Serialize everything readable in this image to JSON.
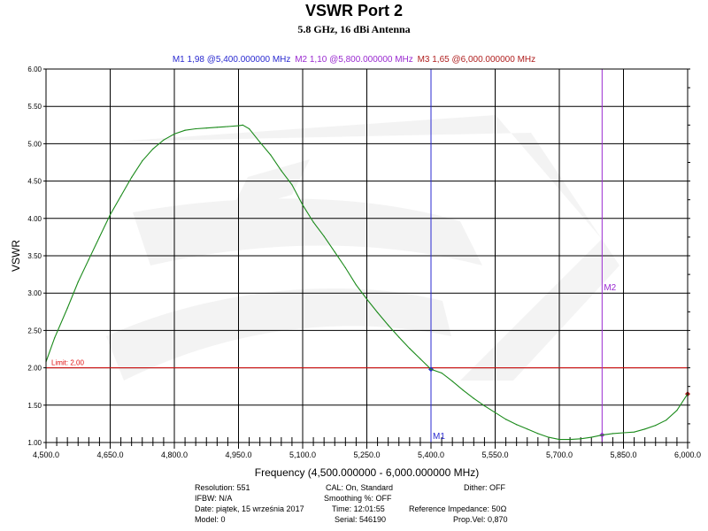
{
  "header": {
    "title": "VSWR Port 2",
    "subtitle": "5.8 GHz, 16 dBi Antenna"
  },
  "marker_readouts": [
    {
      "text": "M1  1,98 @5,400.000000 MHz",
      "color": "#2a2ad0"
    },
    {
      "text": "M2  1,10 @5,800.000000 MHz",
      "color": "#9a2ad0"
    },
    {
      "text": "M3  1,65 @6,000.000000 MHz",
      "color": "#b02020"
    }
  ],
  "chart_data": {
    "type": "line",
    "title": "VSWR Port 2",
    "subtitle": "5.8 GHz, 16 dBi Antenna",
    "xlabel": "Frequency (4,500.000000 - 6,000.000000 MHz)",
    "ylabel": "VSWR",
    "xlim": [
      4500,
      6000
    ],
    "ylim": [
      1.0,
      6.0
    ],
    "grid": true,
    "x_ticks": [
      4500,
      4650,
      4800,
      4950,
      5100,
      5250,
      5400,
      5550,
      5700,
      5850,
      6000
    ],
    "x_tick_labels": [
      "4,500.0",
      "4,650.0",
      "4,800.0",
      "4,950.0",
      "5,100.0",
      "5,250.0",
      "5,400.0",
      "5,550.0",
      "5,700.0",
      "5,850.0",
      "6,000.0"
    ],
    "y_ticks": [
      1.0,
      1.5,
      2.0,
      2.5,
      3.0,
      3.5,
      4.0,
      4.5,
      5.0,
      5.5,
      6.0
    ],
    "y_tick_labels": [
      "1.00",
      "1.50",
      "2.00",
      "2.50",
      "3.00",
      "3.50",
      "4.00",
      "4.50",
      "5.00",
      "5.50",
      "6.00"
    ],
    "series": [
      {
        "color": "#1a8a1a",
        "x": [
          4500,
          4520,
          4550,
          4575,
          4600,
          4625,
          4650,
          4675,
          4700,
          4725,
          4750,
          4775,
          4800,
          4825,
          4850,
          4875,
          4900,
          4925,
          4950,
          4960,
          4975,
          5000,
          5025,
          5050,
          5075,
          5100,
          5125,
          5150,
          5175,
          5200,
          5225,
          5250,
          5275,
          5300,
          5325,
          5350,
          5375,
          5400,
          5425,
          5450,
          5475,
          5500,
          5525,
          5550,
          5575,
          5600,
          5625,
          5650,
          5675,
          5700,
          5725,
          5750,
          5775,
          5800,
          5825,
          5850,
          5875,
          5900,
          5925,
          5950,
          5975,
          6000
        ],
        "y": [
          2.08,
          2.4,
          2.8,
          3.15,
          3.45,
          3.75,
          4.05,
          4.3,
          4.55,
          4.77,
          4.93,
          5.05,
          5.13,
          5.18,
          5.2,
          5.21,
          5.22,
          5.23,
          5.24,
          5.25,
          5.2,
          5.02,
          4.85,
          4.64,
          4.45,
          4.18,
          3.95,
          3.76,
          3.55,
          3.34,
          3.11,
          2.92,
          2.74,
          2.57,
          2.41,
          2.26,
          2.12,
          1.98,
          1.93,
          1.82,
          1.7,
          1.59,
          1.49,
          1.4,
          1.31,
          1.24,
          1.18,
          1.12,
          1.07,
          1.04,
          1.04,
          1.05,
          1.07,
          1.1,
          1.12,
          1.13,
          1.14,
          1.18,
          1.23,
          1.3,
          1.43,
          1.65
        ]
      }
    ],
    "limit_line": {
      "label": "Limit: 2,00",
      "value": 2.0,
      "color": "#e01010"
    },
    "markers": [
      {
        "label": "M1",
        "x": 5400,
        "y": 1.98,
        "color": "#2a2ad0",
        "style": "vertical"
      },
      {
        "label": "M2",
        "x": 5800,
        "y": 1.1,
        "color": "#9a2ad0",
        "style": "vertical"
      },
      {
        "label": "M3",
        "x": 6000,
        "y": 1.65,
        "color": "#b02020",
        "style": "point"
      }
    ]
  },
  "info_panel": {
    "resolution": "Resolution: 551",
    "ifbw": "IFBW: N/A",
    "date": "Date: piątek, 15 września 2017",
    "model": "Model: 0",
    "cal": "CAL: On, Standard",
    "smoothing": "Smoothing %:  OFF",
    "time": "Time: 12:01:55",
    "serial": "Serial: 546190",
    "dither": "Dither:  OFF",
    "ref_impedance": "Reference Impedance: 50Ω",
    "prop_vel": "Prop.Vel: 0,870"
  }
}
